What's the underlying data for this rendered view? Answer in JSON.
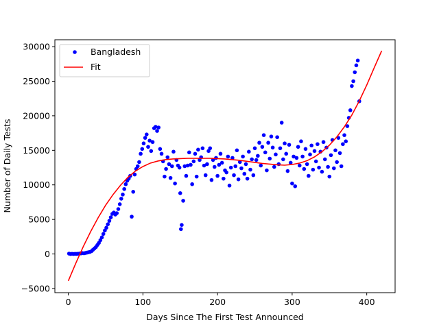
{
  "chart_data": {
    "type": "scatter",
    "title": "",
    "xlabel": "Days Since The First Test Announced",
    "ylabel": "Number of Daily Tests",
    "xlim": [
      -18,
      438
    ],
    "ylim": [
      -5600,
      31000
    ],
    "xticks": [
      0,
      100,
      200,
      300,
      400
    ],
    "yticks": [
      -5000,
      0,
      5000,
      10000,
      15000,
      20000,
      25000,
      30000
    ],
    "grid": false,
    "legend_position": "upper left",
    "series": [
      {
        "name": "Bangladesh",
        "kind": "scatter",
        "color": "#0000ff",
        "points": [
          [
            1,
            50
          ],
          [
            3,
            0
          ],
          [
            5,
            30
          ],
          [
            7,
            0
          ],
          [
            9,
            20
          ],
          [
            11,
            10
          ],
          [
            13,
            40
          ],
          [
            15,
            60
          ],
          [
            17,
            80
          ],
          [
            19,
            120
          ],
          [
            21,
            100
          ],
          [
            23,
            150
          ],
          [
            25,
            200
          ],
          [
            27,
            250
          ],
          [
            29,
            300
          ],
          [
            31,
            400
          ],
          [
            33,
            600
          ],
          [
            35,
            800
          ],
          [
            37,
            1000
          ],
          [
            39,
            1300
          ],
          [
            41,
            1600
          ],
          [
            43,
            2000
          ],
          [
            45,
            2400
          ],
          [
            47,
            2900
          ],
          [
            49,
            3400
          ],
          [
            51,
            3800
          ],
          [
            53,
            4300
          ],
          [
            55,
            4800
          ],
          [
            57,
            5300
          ],
          [
            59,
            5800
          ],
          [
            61,
            6000
          ],
          [
            63,
            5700
          ],
          [
            65,
            5900
          ],
          [
            67,
            6500
          ],
          [
            69,
            7200
          ],
          [
            71,
            8000
          ],
          [
            73,
            8600
          ],
          [
            75,
            9400
          ],
          [
            77,
            10100
          ],
          [
            79,
            10600
          ],
          [
            81,
            10900
          ],
          [
            83,
            11300
          ],
          [
            85,
            5400
          ],
          [
            87,
            9000
          ],
          [
            89,
            11500
          ],
          [
            91,
            12300
          ],
          [
            93,
            12700
          ],
          [
            95,
            13300
          ],
          [
            97,
            14500
          ],
          [
            99,
            15200
          ],
          [
            101,
            16000
          ],
          [
            103,
            16800
          ],
          [
            105,
            17300
          ],
          [
            107,
            15500
          ],
          [
            109,
            16400
          ],
          [
            111,
            14900
          ],
          [
            113,
            16200
          ],
          [
            115,
            18200
          ],
          [
            117,
            18400
          ],
          [
            119,
            17800
          ],
          [
            121,
            18300
          ],
          [
            123,
            15200
          ],
          [
            125,
            14500
          ],
          [
            127,
            13400
          ],
          [
            129,
            11200
          ],
          [
            131,
            12300
          ],
          [
            133,
            14000
          ],
          [
            135,
            13000
          ],
          [
            137,
            11000
          ],
          [
            139,
            12700
          ],
          [
            141,
            14800
          ],
          [
            143,
            10200
          ],
          [
            145,
            13600
          ],
          [
            147,
            12800
          ],
          [
            149,
            12500
          ],
          [
            150,
            8800
          ],
          [
            151,
            3600
          ],
          [
            152,
            4200
          ],
          [
            154,
            7700
          ],
          [
            156,
            12700
          ],
          [
            158,
            11300
          ],
          [
            160,
            12800
          ],
          [
            162,
            14700
          ],
          [
            164,
            12900
          ],
          [
            166,
            10100
          ],
          [
            168,
            13400
          ],
          [
            170,
            14500
          ],
          [
            172,
            11200
          ],
          [
            174,
            15100
          ],
          [
            176,
            13600
          ],
          [
            178,
            14000
          ],
          [
            180,
            15300
          ],
          [
            182,
            12800
          ],
          [
            184,
            11400
          ],
          [
            186,
            13000
          ],
          [
            188,
            14900
          ],
          [
            190,
            15300
          ],
          [
            192,
            10700
          ],
          [
            194,
            13600
          ],
          [
            196,
            12600
          ],
          [
            198,
            13900
          ],
          [
            200,
            11300
          ],
          [
            202,
            12900
          ],
          [
            204,
            14500
          ],
          [
            206,
            13200
          ],
          [
            208,
            10900
          ],
          [
            210,
            12100
          ],
          [
            212,
            11800
          ],
          [
            214,
            14100
          ],
          [
            216,
            9900
          ],
          [
            218,
            12500
          ],
          [
            220,
            13900
          ],
          [
            222,
            11400
          ],
          [
            224,
            12700
          ],
          [
            226,
            15000
          ],
          [
            228,
            10800
          ],
          [
            230,
            13300
          ],
          [
            232,
            12400
          ],
          [
            234,
            14100
          ],
          [
            236,
            11600
          ],
          [
            238,
            13000
          ],
          [
            240,
            10900
          ],
          [
            242,
            14800
          ],
          [
            244,
            12200
          ],
          [
            246,
            13700
          ],
          [
            248,
            11400
          ],
          [
            250,
            15300
          ],
          [
            252,
            13600
          ],
          [
            254,
            14200
          ],
          [
            256,
            16100
          ],
          [
            258,
            12800
          ],
          [
            260,
            15500
          ],
          [
            262,
            17200
          ],
          [
            264,
            14700
          ],
          [
            266,
            12100
          ],
          [
            268,
            16100
          ],
          [
            270,
            13800
          ],
          [
            272,
            17000
          ],
          [
            274,
            15400
          ],
          [
            276,
            12600
          ],
          [
            278,
            14400
          ],
          [
            280,
            16900
          ],
          [
            282,
            13000
          ],
          [
            284,
            15300
          ],
          [
            286,
            19000
          ],
          [
            288,
            13700
          ],
          [
            290,
            16000
          ],
          [
            292,
            14500
          ],
          [
            294,
            12000
          ],
          [
            296,
            15800
          ],
          [
            298,
            13200
          ],
          [
            300,
            10200
          ],
          [
            302,
            14100
          ],
          [
            304,
            9800
          ],
          [
            306,
            13900
          ],
          [
            308,
            15500
          ],
          [
            310,
            12800
          ],
          [
            312,
            16300
          ],
          [
            314,
            14100
          ],
          [
            316,
            12300
          ],
          [
            318,
            15200
          ],
          [
            320,
            13000
          ],
          [
            322,
            11300
          ],
          [
            324,
            14400
          ],
          [
            326,
            15700
          ],
          [
            328,
            12200
          ],
          [
            330,
            14900
          ],
          [
            332,
            13400
          ],
          [
            334,
            15900
          ],
          [
            336,
            12500
          ],
          [
            338,
            14800
          ],
          [
            340,
            11900
          ],
          [
            342,
            16200
          ],
          [
            344,
            13700
          ],
          [
            346,
            15400
          ],
          [
            348,
            12600
          ],
          [
            350,
            11200
          ],
          [
            352,
            14300
          ],
          [
            354,
            16500
          ],
          [
            356,
            12400
          ],
          [
            358,
            15000
          ],
          [
            360,
            13300
          ],
          [
            362,
            16800
          ],
          [
            364,
            14600
          ],
          [
            366,
            12700
          ],
          [
            368,
            15900
          ],
          [
            370,
            17200
          ],
          [
            372,
            16300
          ],
          [
            374,
            18500
          ],
          [
            376,
            19700
          ],
          [
            378,
            20800
          ],
          [
            380,
            24300
          ],
          [
            382,
            25000
          ],
          [
            384,
            26300
          ],
          [
            386,
            27300
          ],
          [
            388,
            28000
          ],
          [
            390,
            22100
          ]
        ]
      },
      {
        "name": "Fit",
        "kind": "line",
        "color": "#ff0000",
        "points": [
          [
            0,
            -3900
          ],
          [
            10,
            -1350
          ],
          [
            20,
            1050
          ],
          [
            30,
            3250
          ],
          [
            40,
            5250
          ],
          [
            50,
            7050
          ],
          [
            60,
            8600
          ],
          [
            70,
            9950
          ],
          [
            80,
            11100
          ],
          [
            90,
            12000
          ],
          [
            100,
            12650
          ],
          [
            110,
            13150
          ],
          [
            120,
            13450
          ],
          [
            130,
            13650
          ],
          [
            140,
            13750
          ],
          [
            150,
            13800
          ],
          [
            160,
            13850
          ],
          [
            170,
            13850
          ],
          [
            180,
            13850
          ],
          [
            190,
            13850
          ],
          [
            200,
            13800
          ],
          [
            210,
            13750
          ],
          [
            220,
            13650
          ],
          [
            230,
            13550
          ],
          [
            240,
            13400
          ],
          [
            250,
            13250
          ],
          [
            260,
            13100
          ],
          [
            270,
            13000
          ],
          [
            280,
            12900
          ],
          [
            290,
            12850
          ],
          [
            300,
            12950
          ],
          [
            310,
            13150
          ],
          [
            320,
            13500
          ],
          [
            330,
            14050
          ],
          [
            340,
            14800
          ],
          [
            350,
            15750
          ],
          [
            360,
            16950
          ],
          [
            370,
            18400
          ],
          [
            380,
            20100
          ],
          [
            390,
            22150
          ],
          [
            400,
            24450
          ],
          [
            410,
            26950
          ],
          [
            420,
            29400
          ]
        ]
      }
    ]
  }
}
